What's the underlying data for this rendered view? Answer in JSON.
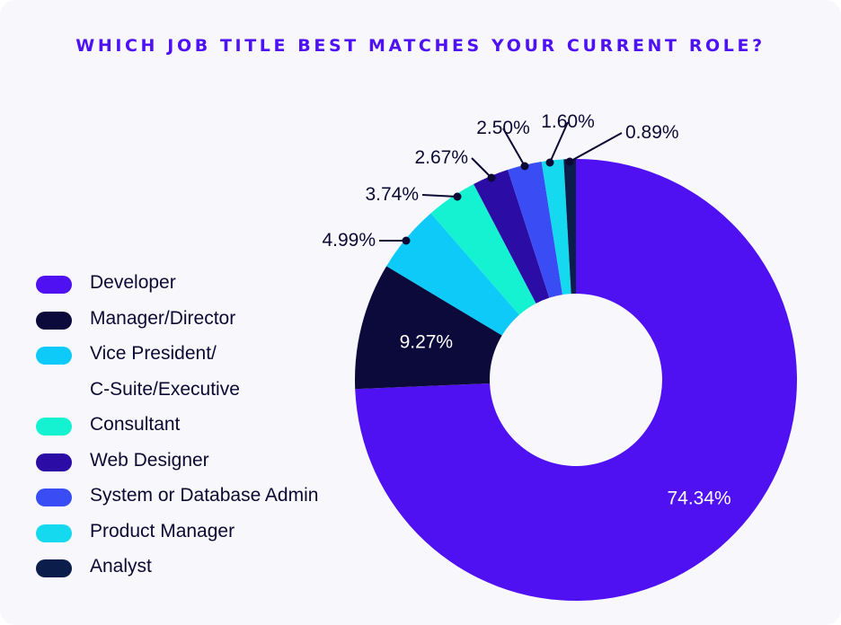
{
  "chart_data": {
    "type": "pie",
    "title": "WHICH JOB TITLE BEST MATCHES YOUR CURRENT ROLE?",
    "categories": [
      "Developer",
      "Manager/Director",
      "Vice President/ C-Suite/Executive",
      "Consultant",
      "Web Designer",
      "System or Database Admin",
      "Product Manager",
      "Analyst"
    ],
    "values": [
      74.34,
      9.27,
      4.99,
      3.74,
      2.67,
      2.5,
      1.6,
      0.89
    ],
    "labels": [
      "74.34%",
      "9.27%",
      "4.99%",
      "3.74%",
      "2.67%",
      "2.50%",
      "1.60%",
      "0.89%"
    ],
    "colors": [
      "#4f10f2",
      "#0b0a3a",
      "#0dcaf9",
      "#14f2d2",
      "#2b0da6",
      "#3a4df5",
      "#15d9ee",
      "#0b1d4a"
    ],
    "legend_position": "left"
  },
  "legend": [
    {
      "lines": [
        "Developer"
      ]
    },
    {
      "lines": [
        "Manager/Director"
      ]
    },
    {
      "lines": [
        "Vice President/",
        "C-Suite/Executive"
      ]
    },
    {
      "lines": [
        "Consultant"
      ]
    },
    {
      "lines": [
        "Web Designer"
      ]
    },
    {
      "lines": [
        "System or Database Admin"
      ]
    },
    {
      "lines": [
        "Product Manager"
      ]
    },
    {
      "lines": [
        "Analyst"
      ]
    }
  ]
}
